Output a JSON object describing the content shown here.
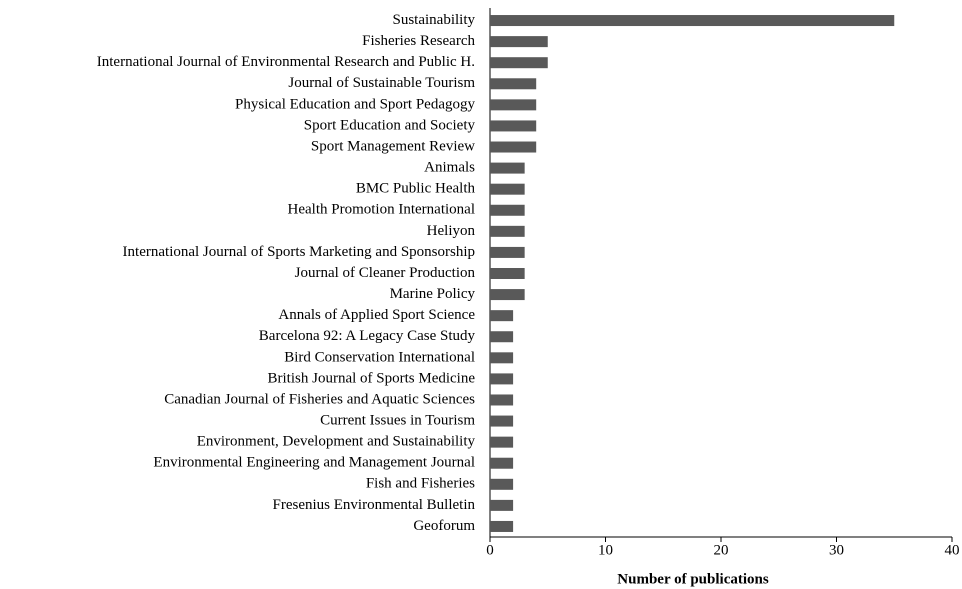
{
  "chart_data": {
    "type": "barh",
    "xlabel": "Number of publications",
    "categories": [
      "Sustainability",
      "Fisheries Research",
      "International Journal of Environmental Research and Public H.",
      "Journal of Sustainable Tourism",
      "Physical Education and Sport Pedagogy",
      "Sport Education and Society",
      "Sport Management Review",
      "Animals",
      "BMC Public Health",
      "Health Promotion International",
      "Heliyon",
      "International Journal of Sports Marketing and Sponsorship",
      "Journal of Cleaner Production",
      "Marine Policy",
      "Annals of Applied Sport Science",
      "Barcelona 92: A Legacy Case Study",
      "Bird Conservation International",
      "British Journal of Sports Medicine",
      "Canadian Journal of Fisheries and Aquatic Sciences",
      "Current Issues in Tourism",
      "Environment, Development and Sustainability",
      "Environmental Engineering and Management Journal",
      "Fish and Fisheries",
      "Fresenius Environmental Bulletin",
      "Geoforum"
    ],
    "values": [
      35,
      5,
      5,
      4,
      4,
      4,
      4,
      3,
      3,
      3,
      3,
      3,
      3,
      3,
      2,
      2,
      2,
      2,
      2,
      2,
      2,
      2,
      2,
      2,
      2
    ],
    "color": "#595959",
    "xlim": [
      0,
      40
    ],
    "xticks": [
      0,
      10,
      20,
      30,
      40
    ],
    "grid": false
  }
}
